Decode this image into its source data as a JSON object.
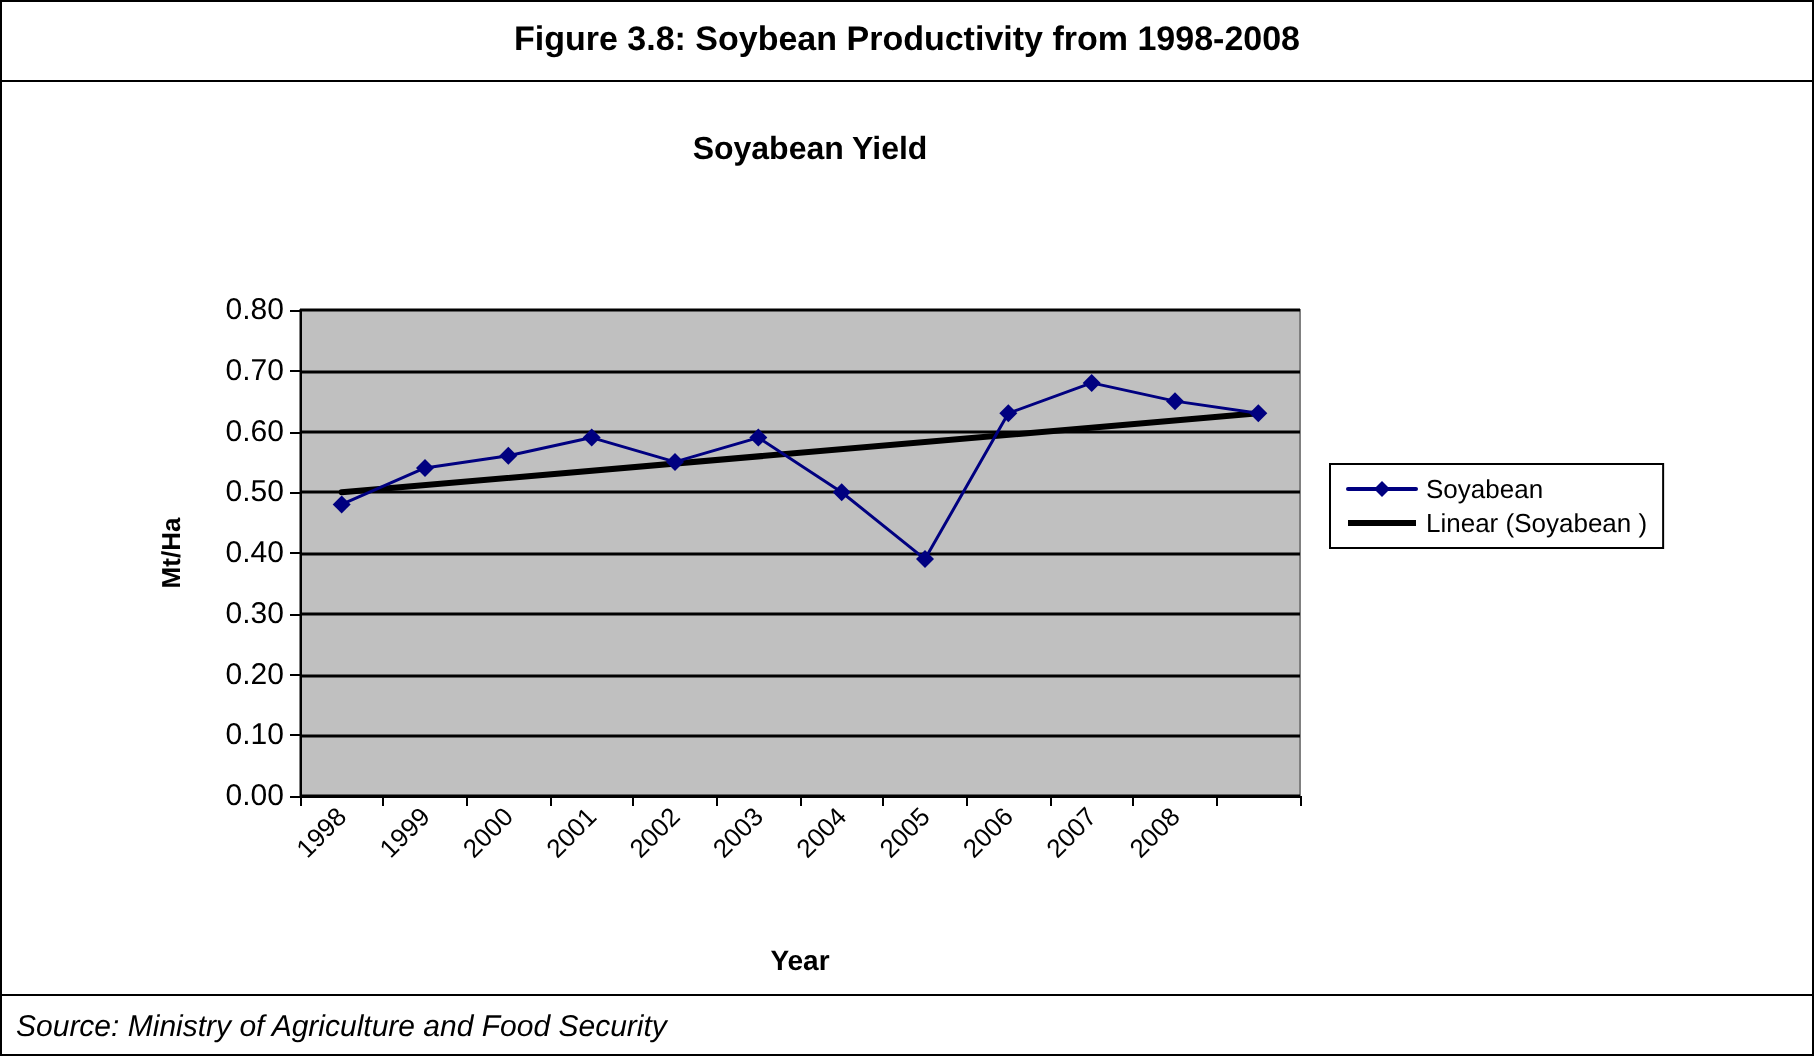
{
  "chart_data": {
    "type": "line",
    "title": "Figure 3.8: Soybean Productivity from 1998-2008",
    "subtitle": "Soyabean Yield",
    "xlabel": "Year",
    "ylabel": "Mt/Ha",
    "categories": [
      "1998",
      "1999",
      "2000",
      "2001",
      "2002",
      "2003",
      "2004",
      "2005",
      "2006",
      "2007",
      "2008",
      null
    ],
    "series": [
      {
        "name": "Soyabean",
        "color": "#000080",
        "marker": "diamond",
        "values": [
          0.48,
          0.54,
          0.56,
          0.59,
          0.55,
          0.59,
          0.5,
          0.39,
          0.63,
          0.68,
          0.65,
          0.63
        ]
      },
      {
        "name": "Linear (Soyabean )",
        "color": "#000000",
        "marker": "none",
        "values": [
          0.5,
          null,
          null,
          null,
          null,
          null,
          null,
          null,
          null,
          null,
          null,
          0.63
        ]
      }
    ],
    "ylim": [
      0,
      0.8
    ],
    "yticks": [
      {
        "value": 0,
        "label": "0.00"
      },
      {
        "value": 0.1,
        "label": "0.10"
      },
      {
        "value": 0.2,
        "label": "0.20"
      },
      {
        "value": 0.3,
        "label": "0.30"
      },
      {
        "value": 0.4,
        "label": "0.40"
      },
      {
        "value": 0.5,
        "label": "0.50"
      },
      {
        "value": 0.6,
        "label": "0.60"
      },
      {
        "value": 0.7,
        "label": "0.70"
      },
      {
        "value": 0.8,
        "label": "0.80"
      }
    ],
    "grid": "y",
    "legend": "right",
    "annotations": [
      "Source: Ministry of Agriculture and Food Security"
    ]
  }
}
